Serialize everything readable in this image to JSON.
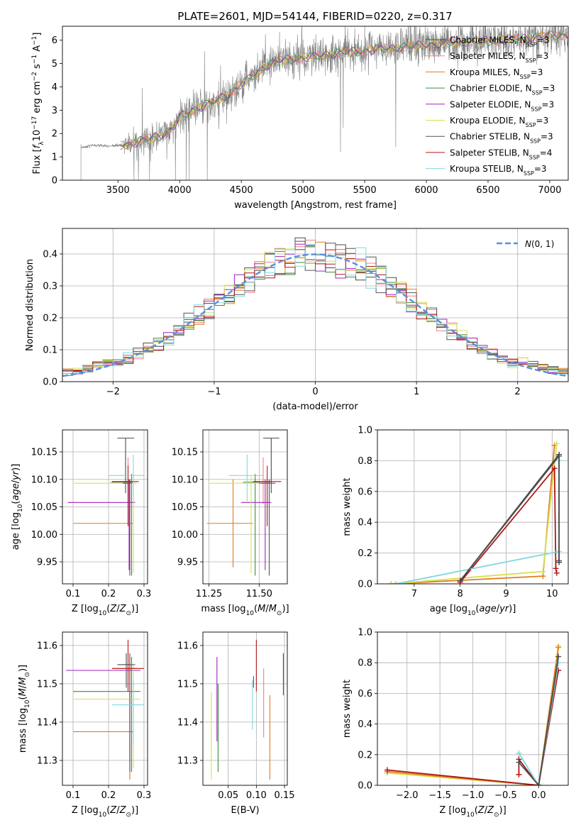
{
  "title": "PLATE=2601, MJD=54144, FIBERID=0220, z=0.317",
  "colors": {
    "Chabrier MILES": "#4a4a4a",
    "Salpeter MILES": "#f08080",
    "Kroupa MILES": "#e07b20",
    "Chabrier ELODIE": "#3c8c3c",
    "Salpeter ELODIE": "#a020c0",
    "Kroupa ELODIE": "#d8e050",
    "Chabrier STELIB": "#555555",
    "Salpeter STELIB": "#b01818",
    "Kroupa STELIB": "#80d8e0",
    "gray": "#808080",
    "normal": "#5b8ee0"
  },
  "chart_data": [
    {
      "id": "spectrum",
      "type": "line",
      "title": "PLATE=2601, MJD=54144, FIBERID=0220, z=0.317",
      "xlabel": "wavelength [Angstrom, rest frame]",
      "ylabel": "Flux [f_λ10^-17 erg cm^-2 s^-1 A^-1]",
      "xlim": [
        3050,
        7150
      ],
      "ylim": [
        0,
        6.6
      ],
      "xticks": [
        3500,
        4000,
        4500,
        5000,
        5500,
        6000,
        6500,
        7000
      ],
      "yticks": [
        0,
        1,
        2,
        3,
        4,
        5,
        6
      ],
      "legend": [
        {
          "name": "Chabrier MILES",
          "nssp": "3"
        },
        {
          "name": "Salpeter MILES",
          "nssp": "3"
        },
        {
          "name": "Kroupa MILES",
          "nssp": "3"
        },
        {
          "name": "Chabrier ELODIE",
          "nssp": "3"
        },
        {
          "name": "Salpeter ELODIE",
          "nssp": "3"
        },
        {
          "name": "Kroupa ELODIE",
          "nssp": "3"
        },
        {
          "name": "Chabrier STELIB",
          "nssp": "3"
        },
        {
          "name": "Salpeter STELIB",
          "nssp": "4"
        },
        {
          "name": "Kroupa STELIB",
          "nssp": "3"
        }
      ],
      "continuum": [
        [
          3200,
          1.4
        ],
        [
          3300,
          1.5
        ],
        [
          3450,
          1.45
        ],
        [
          3600,
          1.55
        ],
        [
          3700,
          1.7
        ],
        [
          3850,
          1.9
        ],
        [
          3950,
          2.3
        ],
        [
          4000,
          2.7
        ],
        [
          4100,
          3.0
        ],
        [
          4200,
          3.2
        ],
        [
          4300,
          3.4
        ],
        [
          4400,
          3.7
        ],
        [
          4500,
          4.1
        ],
        [
          4600,
          4.5
        ],
        [
          4700,
          4.9
        ],
        [
          4800,
          5.1
        ],
        [
          4900,
          5.2
        ],
        [
          5000,
          5.25
        ],
        [
          5100,
          5.3
        ],
        [
          5200,
          5.4
        ],
        [
          5400,
          5.5
        ],
        [
          5600,
          5.6
        ],
        [
          5800,
          5.7
        ],
        [
          6000,
          5.8
        ],
        [
          6200,
          5.9
        ],
        [
          6400,
          5.95
        ],
        [
          6600,
          6.0
        ],
        [
          6800,
          6.1
        ],
        [
          7000,
          6.2
        ]
      ]
    },
    {
      "id": "residuals",
      "type": "line",
      "xlabel": "(data-model)/error",
      "ylabel": "Normed distribution",
      "xlim": [
        -2.5,
        2.5
      ],
      "ylim": [
        0,
        0.48
      ],
      "xticks": [
        -2,
        -1,
        0,
        1,
        2
      ],
      "yticks": [
        0.0,
        0.1,
        0.2,
        0.3,
        0.4
      ],
      "legend": "N(0,1)"
    },
    {
      "id": "age-vs-Z",
      "type": "scatter",
      "xlabel": "Z [log10(Z/Z⊙)]",
      "ylabel": "age [log10(age/yr)]",
      "xlim": [
        0.07,
        0.31
      ],
      "ylim": [
        9.91,
        10.19
      ],
      "xticks": [
        0.1,
        0.2,
        0.3
      ],
      "yticks": [
        9.95,
        10.0,
        10.05,
        10.1,
        10.15
      ],
      "points": [
        {
          "s": "Chabrier MILES",
          "x": 0.248,
          "y": 10.175,
          "xe": [
            0.225,
            0.272
          ],
          "ye": [
            10.075,
            10.175
          ]
        },
        {
          "s": "Salpeter MILES",
          "x": 0.255,
          "y": 10.095,
          "xe": [
            0.205,
            0.27
          ],
          "ye": [
            10.055,
            10.14
          ]
        },
        {
          "s": "Kroupa MILES",
          "x": 0.26,
          "y": 10.02,
          "xe": [
            0.1,
            0.27
          ],
          "ye": [
            9.94,
            10.1
          ]
        },
        {
          "s": "Chabrier ELODIE",
          "x": 0.265,
          "y": 10.095,
          "xe": [
            0.21,
            0.27
          ],
          "ye": [
            9.925,
            10.11
          ]
        },
        {
          "s": "Salpeter ELODIE",
          "x": 0.258,
          "y": 10.058,
          "xe": [
            0.085,
            0.275
          ],
          "ye": [
            9.935,
            10.1
          ]
        },
        {
          "s": "Kroupa ELODIE",
          "x": 0.27,
          "y": 10.093,
          "xe": [
            0.1,
            0.28
          ],
          "ye": [
            9.93,
            10.105
          ]
        },
        {
          "s": "Chabrier STELIB",
          "x": 0.26,
          "y": 10.093,
          "xe": [
            0.24,
            0.265
          ],
          "ye": [
            9.925,
            10.1
          ]
        },
        {
          "s": "Salpeter STELIB",
          "x": 0.255,
          "y": 10.096,
          "xe": [
            0.21,
            0.285
          ],
          "ye": [
            10.015,
            10.125
          ]
        },
        {
          "s": "Kroupa STELIB",
          "x": 0.27,
          "y": 10.107,
          "xe": [
            0.2,
            0.3
          ],
          "ye": [
            10.06,
            10.145
          ]
        }
      ]
    },
    {
      "id": "age-vs-mass",
      "type": "scatter",
      "xlabel": "mass [log10(M/M⊙)]",
      "ylabel": "",
      "xlim": [
        11.22,
        11.64
      ],
      "ylim": [
        9.91,
        10.19
      ],
      "xticks": [
        11.25,
        11.5
      ],
      "yticks": [
        9.95,
        10.0,
        10.05,
        10.1,
        10.15
      ],
      "points": [
        {
          "s": "Chabrier MILES",
          "x": 11.56,
          "y": 10.175,
          "xe": [
            11.52,
            11.6
          ],
          "ye": [
            10.075,
            10.175
          ]
        },
        {
          "s": "Salpeter MILES",
          "x": 11.52,
          "y": 10.095,
          "xe": [
            11.45,
            11.56
          ],
          "ye": [
            10.055,
            10.14
          ]
        },
        {
          "s": "Kroupa MILES",
          "x": 11.37,
          "y": 10.02,
          "xe": [
            11.24,
            11.47
          ],
          "ye": [
            9.94,
            10.1
          ]
        },
        {
          "s": "Chabrier ELODIE",
          "x": 11.48,
          "y": 10.095,
          "xe": [
            11.42,
            11.5
          ],
          "ye": [
            9.925,
            10.11
          ]
        },
        {
          "s": "Salpeter ELODIE",
          "x": 11.53,
          "y": 10.058,
          "xe": [
            11.41,
            11.56
          ],
          "ye": [
            9.935,
            10.1
          ]
        },
        {
          "s": "Kroupa ELODIE",
          "x": 11.46,
          "y": 10.093,
          "xe": [
            11.25,
            11.5
          ],
          "ye": [
            9.93,
            10.105
          ]
        },
        {
          "s": "Chabrier STELIB",
          "x": 11.55,
          "y": 10.093,
          "xe": [
            11.5,
            11.58
          ],
          "ye": [
            9.925,
            10.1
          ]
        },
        {
          "s": "Salpeter STELIB",
          "x": 11.54,
          "y": 10.096,
          "xe": [
            11.47,
            11.61
          ],
          "ye": [
            10.015,
            10.125
          ]
        },
        {
          "s": "Kroupa STELIB",
          "x": 11.44,
          "y": 10.107,
          "xe": [
            11.35,
            11.52
          ],
          "ye": [
            10.06,
            10.145
          ]
        }
      ]
    },
    {
      "id": "weight-vs-age",
      "type": "line",
      "xlabel": "age [log10(age/yr)]",
      "ylabel": "mass weight",
      "xlim": [
        6.2,
        10.35
      ],
      "ylim": [
        0,
        1.0
      ],
      "xticks": [
        7,
        8,
        9,
        10
      ],
      "yticks": [
        0.0,
        0.2,
        0.4,
        0.6,
        0.8,
        1.0
      ],
      "series": [
        {
          "s": "Kroupa MILES",
          "pts": [
            [
              6.5,
              0.0
            ],
            [
              9.8,
              0.05
            ],
            [
              10.05,
              0.9
            ]
          ]
        },
        {
          "s": "Kroupa ELODIE",
          "pts": [
            [
              6.5,
              0.0
            ],
            [
              9.8,
              0.08
            ],
            [
              10.1,
              0.91
            ]
          ]
        },
        {
          "s": "Chabrier STELIB",
          "pts": [
            [
              8.0,
              0.02
            ],
            [
              10.15,
              0.83
            ],
            [
              10.15,
              0.15
            ]
          ]
        },
        {
          "s": "Salpeter STELIB",
          "pts": [
            [
              8.0,
              0.01
            ],
            [
              10.05,
              0.75
            ],
            [
              10.08,
              0.1
            ],
            [
              10.1,
              0.07
            ]
          ]
        },
        {
          "s": "Kroupa STELIB",
          "pts": [
            [
              6.6,
              0.0
            ],
            [
              10.15,
              0.21
            ],
            [
              10.15,
              0.8
            ]
          ]
        },
        {
          "s": "Chabrier MILES",
          "pts": [
            [
              8.0,
              0.02
            ],
            [
              10.15,
              0.84
            ],
            [
              10.15,
              0.14
            ]
          ]
        }
      ]
    },
    {
      "id": "mass-vs-Z",
      "type": "scatter",
      "xlabel": "Z [log10(Z/Z⊙)]",
      "ylabel": "mass [log10(M/M⊙)]",
      "xlim": [
        0.07,
        0.31
      ],
      "ylim": [
        11.235,
        11.635
      ],
      "xticks": [
        0.1,
        0.2,
        0.3
      ],
      "yticks": [
        11.3,
        11.4,
        11.5,
        11.6
      ],
      "points": [
        {
          "s": "Chabrier MILES",
          "x": 0.25,
          "y": 11.55,
          "xe": [
            0.225,
            0.275
          ],
          "ye": [
            11.49,
            11.58
          ]
        },
        {
          "s": "Salpeter MILES",
          "x": 0.26,
          "y": 11.54,
          "xe": [
            0.21,
            0.28
          ],
          "ye": [
            11.25,
            11.56
          ]
        },
        {
          "s": "Kroupa MILES",
          "x": 0.26,
          "y": 11.375,
          "xe": [
            0.1,
            0.27
          ],
          "ye": [
            11.25,
            11.48
          ]
        },
        {
          "s": "Chabrier ELODIE",
          "x": 0.265,
          "y": 11.48,
          "xe": [
            0.1,
            0.29
          ],
          "ye": [
            11.27,
            11.57
          ]
        },
        {
          "s": "Salpeter ELODIE",
          "x": 0.26,
          "y": 11.535,
          "xe": [
            0.08,
            0.29
          ],
          "ye": [
            11.3,
            11.57
          ]
        },
        {
          "s": "Kroupa ELODIE",
          "x": 0.27,
          "y": 11.46,
          "xe": [
            0.1,
            0.29
          ],
          "ye": [
            11.28,
            11.55
          ]
        },
        {
          "s": "Chabrier STELIB",
          "x": 0.26,
          "y": 11.55,
          "xe": [
            0.24,
            0.265
          ],
          "ye": [
            11.27,
            11.58
          ]
        },
        {
          "s": "Salpeter STELIB",
          "x": 0.255,
          "y": 11.54,
          "xe": [
            0.21,
            0.3
          ],
          "ye": [
            11.48,
            11.615
          ]
        },
        {
          "s": "Kroupa STELIB",
          "x": 0.27,
          "y": 11.445,
          "xe": [
            0.21,
            0.3
          ],
          "ye": [
            11.34,
            11.51
          ]
        }
      ]
    },
    {
      "id": "mass-vs-EBV",
      "type": "scatter",
      "xlabel": "E(B-V)",
      "ylabel": "",
      "xlim": [
        0.005,
        0.155
      ],
      "ylim": [
        11.235,
        11.635
      ],
      "xticks": [
        0.05,
        0.1,
        0.15
      ],
      "yticks": [
        11.3,
        11.4,
        11.5,
        11.6
      ],
      "points": [
        {
          "s": "Chabrier MILES",
          "x": 0.148,
          "y": 11.5,
          "xe": [
            0.148,
            0.148
          ],
          "ye": [
            11.47,
            11.58
          ]
        },
        {
          "s": "Salpeter MILES",
          "x": 0.113,
          "y": 11.45,
          "xe": [
            0.113,
            0.113
          ],
          "ye": [
            11.36,
            11.54
          ]
        },
        {
          "s": "Kroupa MILES",
          "x": 0.124,
          "y": 11.4,
          "xe": [
            0.124,
            0.124
          ],
          "ye": [
            11.25,
            11.47
          ]
        },
        {
          "s": "Chabrier ELODIE",
          "x": 0.032,
          "y": 11.4,
          "xe": [
            0.032,
            0.032
          ],
          "ye": [
            11.27,
            11.5
          ]
        },
        {
          "s": "Salpeter ELODIE",
          "x": 0.03,
          "y": 11.47,
          "xe": [
            0.03,
            0.03
          ],
          "ye": [
            11.35,
            11.57
          ]
        },
        {
          "s": "Kroupa ELODIE",
          "x": 0.02,
          "y": 11.38,
          "xe": [
            0.02,
            0.02
          ],
          "ye": [
            11.25,
            11.48
          ]
        },
        {
          "s": "Chabrier STELIB",
          "x": 0.095,
          "y": 11.5,
          "xe": [
            0.095,
            0.095
          ],
          "ye": [
            11.49,
            11.52
          ]
        },
        {
          "s": "Salpeter STELIB",
          "x": 0.1,
          "y": 11.55,
          "xe": [
            0.1,
            0.1
          ],
          "ye": [
            11.48,
            11.615
          ]
        },
        {
          "s": "Kroupa STELIB",
          "x": 0.093,
          "y": 11.45,
          "xe": [
            0.093,
            0.093
          ],
          "ye": [
            11.38,
            11.51
          ]
        }
      ]
    },
    {
      "id": "weight-vs-Z",
      "type": "line",
      "xlabel": "Z [log10(Z/Z⊙)]",
      "ylabel": "mass weight",
      "xlim": [
        -2.45,
        0.45
      ],
      "ylim": [
        0,
        1.0
      ],
      "xticks": [
        -2.0,
        -1.5,
        -1.0,
        -0.5,
        0.0
      ],
      "yticks": [
        0.0,
        0.2,
        0.4,
        0.6,
        0.8,
        1.0
      ],
      "series": [
        {
          "s": "Kroupa ELODIE",
          "pts": [
            [
              -2.3,
              0.08
            ],
            [
              0.0,
              0.0
            ],
            [
              0.3,
              0.91
            ]
          ]
        },
        {
          "s": "Kroupa MILES",
          "pts": [
            [
              -2.3,
              0.09
            ],
            [
              0.0,
              0.0
            ],
            [
              0.3,
              0.9
            ]
          ]
        },
        {
          "s": "Salpeter STELIB",
          "pts": [
            [
              -2.3,
              0.1
            ],
            [
              0.0,
              0.0
            ],
            [
              0.3,
              0.75
            ]
          ]
        },
        {
          "s": "Salpeter STELIB",
          "pts": [
            [
              -0.3,
              0.07
            ],
            [
              -0.3,
              0.17
            ],
            [
              0.0,
              0.0
            ]
          ]
        },
        {
          "s": "Kroupa STELIB",
          "pts": [
            [
              -0.3,
              0.21
            ],
            [
              0.0,
              0.0
            ],
            [
              0.3,
              0.8
            ]
          ]
        },
        {
          "s": "Chabrier MILES",
          "pts": [
            [
              -0.3,
              0.15
            ],
            [
              0.0,
              0.0
            ],
            [
              0.3,
              0.84
            ]
          ]
        }
      ]
    }
  ]
}
